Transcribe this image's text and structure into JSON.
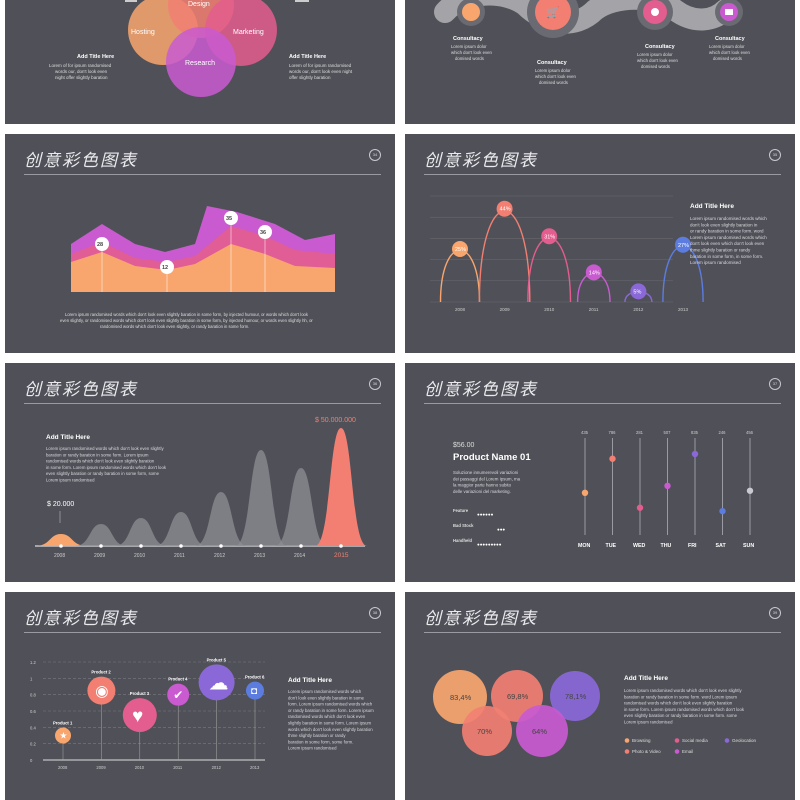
{
  "slides": {
    "s1": {
      "venn": [
        "Design",
        "Hosting",
        "Marketing",
        "Research"
      ],
      "title_right": "Add Title Here",
      "title_left": "Add Title Here",
      "body_lines": [
        "Lorem of for ipsum randomised",
        "words our, don't look even",
        "night offer slightly baration"
      ],
      "body_lines_r": [
        "Lorem of for ipsum randomised",
        "words our, don't look even night",
        "offer slightly baration"
      ]
    },
    "s2": {
      "labels": [
        {
          "title": "Consultacy",
          "lines": [
            "Lorem ipsum dolor",
            "which don't look even",
            "domised words"
          ]
        },
        {
          "title": "Consultacy",
          "lines": [
            "Lorem ipsum dolor",
            "which don't look even",
            "domised words"
          ]
        },
        {
          "title": "Consultacy",
          "lines": [
            "Lorem ipsum dolor",
            "which don't look even",
            "domised words"
          ]
        },
        {
          "title": "Consultacy",
          "lines": [
            "Lorem ipsum dolor",
            "which don't look even",
            "domised words"
          ]
        }
      ]
    },
    "s3": {
      "title": "创意彩色图表",
      "num": "34",
      "points": [
        "28",
        "12",
        "35",
        "36"
      ],
      "footer": [
        "Lorem ipsum randomised words which don't look even slightly baration in some form, by injected humour, or words which don't look",
        "even slightly, or randomised words which don't look even slightly baration in some form, by injected humour, or words even slightly hh, or",
        "randomised words which don't look even slightly, or randy baration in some form."
      ]
    },
    "s4": {
      "title": "创意彩色图表",
      "num": "35",
      "heading": "Add Title Here",
      "body": [
        "Lorem ipsum randomised words which",
        "don't look even slightly baration in",
        "or randy baration in some form. word",
        "Lorem ipsum randomised words which",
        "don't look even which don't look even",
        "thme slightly baration or randy",
        "baration in some form, in some form.",
        "Lorem ipsum randomised"
      ]
    },
    "s5": {
      "title": "创意彩色图表",
      "num": "36",
      "heading": "Add Title Here",
      "body": [
        "Lorem ipsum randomised words which don't look even slightly",
        "baration or randy baration in some form. Lorem ipsum",
        "randomised words which don't look even slightly baration",
        "in some form. Lorem ipsum randomised words which don't look",
        "even slightly baration or randy baration in some form, some",
        "Lorem ipsum randomised"
      ],
      "low_label": "$ 20.000",
      "high_label": "$ 50.000.000"
    },
    "s6": {
      "title": "创意彩色图表",
      "num": "37",
      "price": "$56.00",
      "product": "Product Name 01",
      "desc": [
        "Soluzione innumerevoli variazioni",
        "dei passaggi del Lorem Ipsum, ma",
        "la maggior parte hanno subito",
        "delle variazioni del marketing."
      ],
      "features": [
        {
          "label": "Feature",
          "dots": "●●●●●●"
        },
        {
          "label": "Bad Stock",
          "dots": "●●●"
        },
        {
          "label": "Handheld",
          "dots": "●●●●●●●●●"
        }
      ]
    },
    "s7": {
      "title": "创意彩色图表",
      "num": "38",
      "heading": "Add Title Here",
      "body": [
        "Lorem ipsum randomised words which",
        "don't look even slightly baration in some",
        "form. Lorem ipsum randomised words which",
        "or randy baration in some form. Lorem ipsum",
        "randomised words which don't look even",
        "slightly baration in some form. Lorem ipsum",
        "words which don't look even slightly baration",
        "thme slightly baration or randy",
        "baration in some form, some form.",
        "Lorem ipsum randomised"
      ]
    },
    "s8": {
      "title": "创意彩色图表",
      "num": "39",
      "heading": "Add Title Here",
      "body": [
        "Lorem ipsum randomised words which don't look even slightly",
        "baration or randy baration in some form. word Lorem ipsum",
        "randomised words which don't look even slightly baration",
        "in some form. Lorem ipsum randomised words which don't look",
        "even slightly baration or randy baration in some form. some",
        "Lorem ipsum randomised"
      ],
      "bubbles": [
        "83,4%",
        "69,8%",
        "78,1%",
        "70%",
        "64%"
      ],
      "legend": [
        "Browsing",
        "Social media",
        "Geolocation",
        "Photo & Video",
        "Email"
      ]
    }
  },
  "chart_data": [
    {
      "type": "area",
      "series": [
        {
          "values": [
            28,
            12,
            35,
            36
          ]
        }
      ]
    },
    {
      "type": "bar",
      "categories": [
        "2008",
        "2009",
        "2010",
        "2011",
        "2012",
        "2013"
      ],
      "values": [
        25,
        44,
        31,
        14,
        5,
        27
      ],
      "unit": "%"
    },
    {
      "type": "area",
      "categories": [
        "2008",
        "2009",
        "2010",
        "2011",
        "2012",
        "2013",
        "2014",
        "2015"
      ]
    },
    {
      "type": "scatter",
      "categories": [
        "MON",
        "TUE",
        "WED",
        "THU",
        "FRI",
        "SAT",
        "SUN"
      ],
      "values": [
        435,
        786,
        281,
        507,
        835,
        246,
        456
      ]
    },
    {
      "type": "scatter",
      "categories": [
        "2008",
        "2009",
        "2010",
        "2011",
        "2012",
        "2013"
      ],
      "series": [
        {
          "name": "Product 1",
          "values": [
            0.3
          ]
        },
        {
          "name": "Product 2",
          "values": [
            0.85
          ]
        },
        {
          "name": "Product 3",
          "values": [
            0.55
          ]
        },
        {
          "name": "Product 4",
          "values": [
            0.8
          ]
        },
        {
          "name": "Product 5",
          "values": [
            0.95
          ]
        },
        {
          "name": "Product 6",
          "values": [
            0.85
          ]
        }
      ],
      "ylim": [
        0,
        1.2
      ],
      "yticks": [
        "0",
        "0.2",
        "0.4",
        "0.6",
        "0.8",
        "1",
        "1.2"
      ]
    },
    {
      "type": "bubble",
      "values": [
        "83,4%",
        "69,8%",
        "78,1%",
        "70%",
        "64%"
      ]
    }
  ],
  "colors": {
    "bg": "#505158",
    "orange": "#f8a66e",
    "salmon": "#f27f72",
    "pink": "#e35d8e",
    "magenta": "#c95ad0",
    "purple": "#8a68d8",
    "blue": "#5c7ce0",
    "grey": "#a3a3a8"
  }
}
